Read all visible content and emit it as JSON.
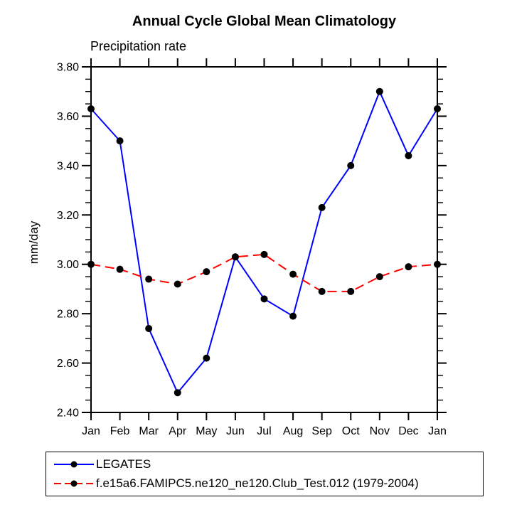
{
  "title": "Annual Cycle Global Mean Climatology",
  "subtitle": "Precipitation rate",
  "ylabel": "mm/day",
  "colors": {
    "axis": "#000000",
    "background": "#ffffff",
    "series1": "#0000ff",
    "series2": "#ff0000",
    "marker": "#000000"
  },
  "legend": {
    "entries": [
      {
        "label": "LEGATES",
        "color": "#0000ff",
        "style": "solid",
        "marker_color": "#000000"
      },
      {
        "label": "f.e15a6.FAMIPC5.ne120_ne120.Club_Test.012 (1979-2004)",
        "color": "#ff0000",
        "style": "dashed",
        "marker_color": "#000000"
      }
    ]
  },
  "chart_data": {
    "type": "line",
    "title": "Annual Cycle Global Mean Climatology",
    "subtitle": "Precipitation rate",
    "xlabel": "",
    "ylabel": "mm/day",
    "categories": [
      "Jan",
      "Feb",
      "Mar",
      "Apr",
      "May",
      "Jun",
      "Jul",
      "Aug",
      "Sep",
      "Oct",
      "Nov",
      "Dec",
      "Jan"
    ],
    "series": [
      {
        "name": "LEGATES",
        "color": "#0000ff",
        "line_style": "solid",
        "marker": "filled-circle",
        "marker_color": "#000000",
        "values": [
          3.63,
          3.5,
          2.74,
          2.48,
          2.62,
          3.03,
          2.86,
          2.79,
          3.23,
          3.4,
          3.7,
          3.44,
          3.63
        ]
      },
      {
        "name": "f.e15a6.FAMIPC5.ne120_ne120.Club_Test.012 (1979-2004)",
        "color": "#ff0000",
        "line_style": "dashed",
        "marker": "filled-circle",
        "marker_color": "#000000",
        "values": [
          3.0,
          2.98,
          2.94,
          2.92,
          2.97,
          3.03,
          3.04,
          2.96,
          2.89,
          2.89,
          2.95,
          2.99,
          3.0
        ]
      }
    ],
    "ylim": [
      2.4,
      3.8
    ],
    "ytick_values": [
      2.4,
      2.6,
      2.8,
      3.0,
      3.2,
      3.4,
      3.6,
      3.8
    ],
    "ytick_labels": [
      "2.40",
      "2.60",
      "2.80",
      "3.00",
      "3.20",
      "3.40",
      "3.60",
      "3.80"
    ],
    "yminor_step": 0.05,
    "grid": false,
    "tick_direction": "out",
    "legend_position": "bottom-left"
  }
}
